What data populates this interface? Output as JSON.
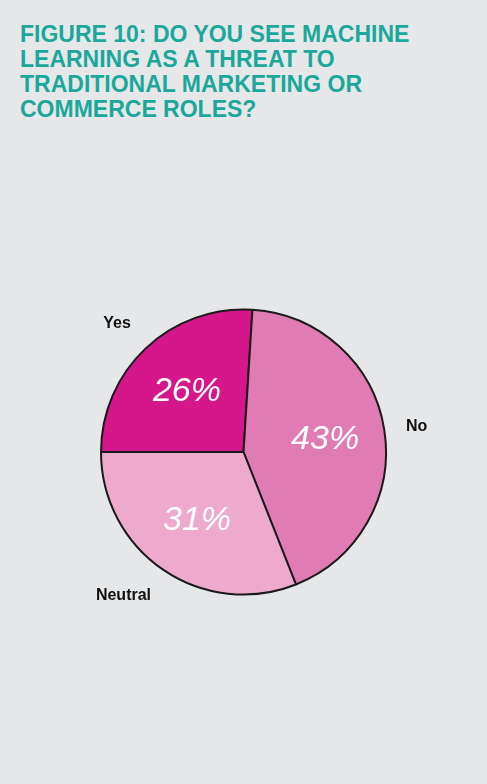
{
  "chart_data": {
    "type": "pie",
    "title": "FIGURE 10: DO YOU SEE MACHINE LEARNING AS A THREAT TO TRADITIONAL MARKETING OR COMMERCE ROLES?",
    "categories": [
      "Yes",
      "No",
      "Neutral"
    ],
    "values": [
      26,
      43,
      31
    ],
    "value_labels": [
      "26%",
      "43%",
      "31%"
    ],
    "colors": [
      "#d6168b",
      "#e07bb4",
      "#eeaacd"
    ],
    "data_labels": true
  }
}
